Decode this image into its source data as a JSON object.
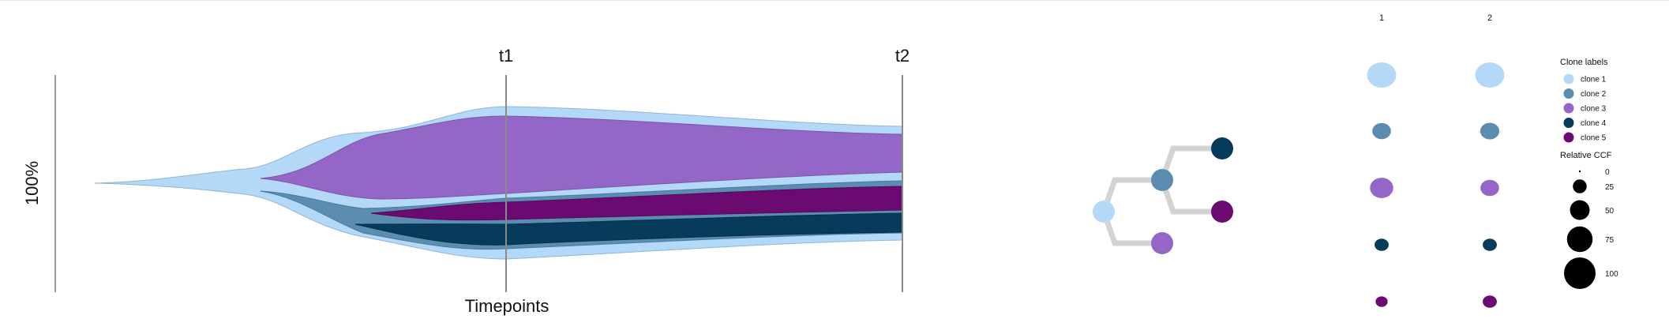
{
  "chart_data": [
    {
      "type": "area",
      "subtype": "fish plot (clonal evolution)",
      "xlabel": "Timepoints",
      "ylabel": "100%",
      "x": [
        "t1",
        "t2"
      ],
      "clones": [
        {
          "name": "clone 1",
          "parent": null,
          "color": "#b4d8f7",
          "ccf": [
            100,
            100
          ]
        },
        {
          "name": "clone 2",
          "parent": "clone 1",
          "color": "#5b8db0",
          "ccf": [
            35,
            37
          ]
        },
        {
          "name": "clone 3",
          "parent": "clone 1",
          "color": "#9466c8",
          "ccf": [
            60,
            35
          ]
        },
        {
          "name": "clone 4",
          "parent": "clone 2",
          "color": "#063b5b",
          "ccf": [
            17,
            17
          ]
        },
        {
          "name": "clone 5",
          "parent": "clone 2",
          "color": "#6b0b72",
          "ccf": [
            11,
            17
          ]
        }
      ]
    },
    {
      "type": "tree",
      "nodes": [
        "clone 1",
        "clone 2",
        "clone 3",
        "clone 4",
        "clone 5"
      ],
      "edges": [
        [
          "clone 1",
          "clone 2"
        ],
        [
          "clone 1",
          "clone 3"
        ],
        [
          "clone 2",
          "clone 4"
        ],
        [
          "clone 2",
          "clone 5"
        ]
      ]
    },
    {
      "type": "scatter",
      "subtype": "bubble grid",
      "columns": [
        "1",
        "2"
      ],
      "rows": [
        "clone 1",
        "clone 2",
        "clone 3",
        "clone 4",
        "clone 5"
      ],
      "values": [
        [
          100,
          100
        ],
        [
          35,
          37
        ],
        [
          60,
          35
        ],
        [
          17,
          17
        ],
        [
          11,
          17
        ]
      ]
    }
  ],
  "legend": {
    "clone_title": "Clone labels",
    "clones": [
      "clone 1",
      "clone 2",
      "clone 3",
      "clone 4",
      "clone 5"
    ],
    "ccf_title": "Relative CCF",
    "ccf_scale": [
      "0",
      "25",
      "50",
      "75",
      "100"
    ]
  }
}
